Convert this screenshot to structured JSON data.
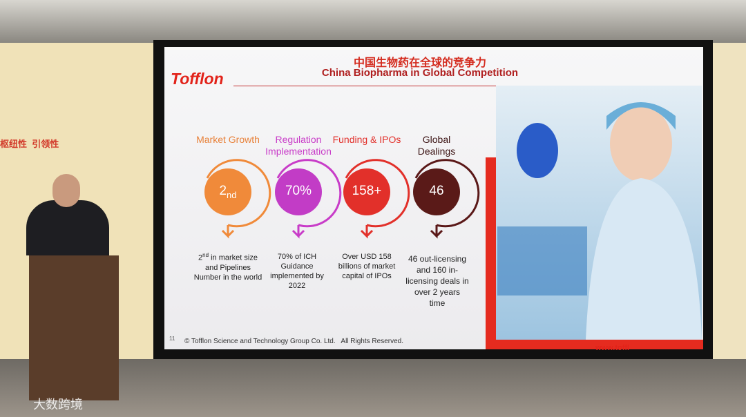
{
  "wall": {
    "slogan": "枢纽性  引领性",
    "watermark": "大数跨境"
  },
  "slide": {
    "logo": "Tofflon",
    "title_cn": "中国生物药在全球的竞争力",
    "title_en": "China Biopharma in Global Competition",
    "metrics": [
      {
        "heading": "Market Growth",
        "value": "2",
        "value_suffix": "nd",
        "desc_prefix": "2",
        "desc_suffix": "nd",
        "desc": " in market size and Pipelines Number in the world"
      },
      {
        "heading": "Regulation Implementation",
        "value": "70%",
        "desc": "70% of ICH Guidance implemented by 2022"
      },
      {
        "heading": "Funding & IPOs",
        "value": "158+",
        "desc": "Over  USD 158 billions of market capital of IPOs"
      },
      {
        "heading": "Global Dealings",
        "value": "46",
        "desc": "46 out-licensing and 160 in-licensing deals in over 2 years time"
      }
    ],
    "page_number": "11",
    "footer": "© Tofflon Science and Technology Group Co. Ltd.   All Rights Reserved.",
    "url": "www.toffl"
  }
}
